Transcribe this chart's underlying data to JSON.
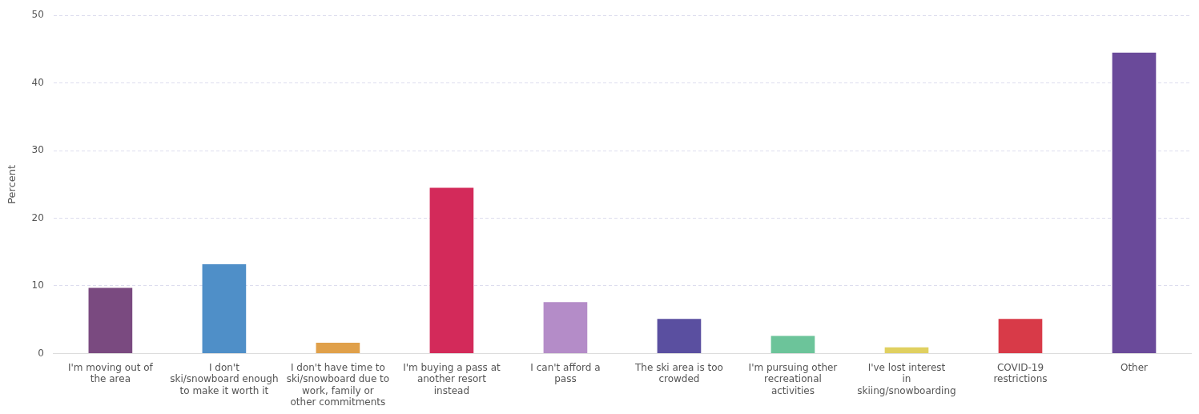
{
  "chart_data": {
    "type": "bar",
    "ylabel": "Percent",
    "categories": [
      "I'm moving out of the area",
      "I don't ski/snowboard enough to make it worth it",
      "I don't have time to ski/snowboard due to work, family or other commitments",
      "I'm buying a pass at another resort instead",
      "I can't afford a pass",
      "The ski area is too crowded",
      "I'm pursuing other recreational activities",
      "I've lost interest in skiing/snowboarding",
      "COVID-19 restrictions",
      "Other"
    ],
    "values": [
      9.7,
      13.2,
      1.6,
      24.5,
      7.6,
      5.1,
      2.6,
      0.9,
      5.1,
      44.5
    ],
    "colors": [
      "#7a4a80",
      "#4f8fc8",
      "#e0a04a",
      "#d32a5a",
      "#b48cc8",
      "#5a4fa0",
      "#6cc49a",
      "#e0d060",
      "#d83a48",
      "#6a4a9a"
    ],
    "ylim": [
      0,
      50
    ],
    "yticks": [
      0,
      10,
      20,
      30,
      40,
      50
    ],
    "grid": "y"
  }
}
